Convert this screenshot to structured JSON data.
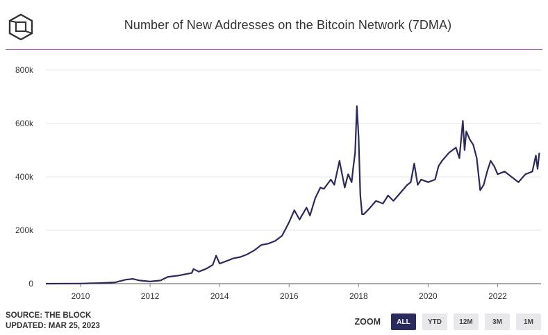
{
  "header": {
    "title": "Number of New Addresses on the Bitcoin Network (7DMA)"
  },
  "footer": {
    "source": "SOURCE: THE BLOCK",
    "updated": "UPDATED: MAR 25, 2023"
  },
  "zoom": {
    "label": "ZOOM",
    "buttons": [
      {
        "label": "ALL",
        "active": true
      },
      {
        "label": "YTD",
        "active": false
      },
      {
        "label": "12M",
        "active": false
      },
      {
        "label": "3M",
        "active": false
      },
      {
        "label": "1M",
        "active": false
      }
    ]
  },
  "colors": {
    "line": "#2b2a5c",
    "accent": "#b44fd0",
    "grid": "#e6e6e6"
  },
  "chart_data": {
    "type": "line",
    "title": "Number of New Addresses on the Bitcoin Network (7DMA)",
    "xlim": [
      2009.0,
      2023.25
    ],
    "ylim": [
      0,
      800000
    ],
    "x_ticks": [
      2010,
      2012,
      2014,
      2016,
      2018,
      2020,
      2022
    ],
    "x_tick_labels": [
      "2010",
      "2012",
      "2014",
      "2016",
      "2018",
      "2020",
      "2022"
    ],
    "y_ticks": [
      0,
      200000,
      400000,
      600000,
      800000
    ],
    "y_tick_labels": [
      "0",
      "200k",
      "400k",
      "600k",
      "800k"
    ],
    "grid": true,
    "series": [
      {
        "x": [
          2009.0,
          2010.0,
          2010.5,
          2011.0,
          2011.3,
          2011.5,
          2011.7,
          2012.0,
          2012.3,
          2012.5,
          2012.8,
          2013.0,
          2013.2,
          2013.25,
          2013.4,
          2013.6,
          2013.8,
          2013.9,
          2014.0,
          2014.2,
          2014.4,
          2014.6,
          2014.8,
          2015.0,
          2015.2,
          2015.4,
          2015.6,
          2015.8,
          2015.9,
          2016.0,
          2016.15,
          2016.3,
          2016.5,
          2016.6,
          2016.75,
          2016.9,
          2017.0,
          2017.2,
          2017.3,
          2017.45,
          2017.6,
          2017.7,
          2017.8,
          2017.85,
          2017.9,
          2017.95,
          2018.0,
          2018.05,
          2018.1,
          2018.15,
          2018.3,
          2018.5,
          2018.7,
          2018.85,
          2019.0,
          2019.2,
          2019.4,
          2019.5,
          2019.6,
          2019.7,
          2019.8,
          2020.0,
          2020.2,
          2020.3,
          2020.4,
          2020.6,
          2020.8,
          2020.9,
          2021.0,
          2021.05,
          2021.1,
          2021.2,
          2021.3,
          2021.4,
          2021.5,
          2021.6,
          2021.7,
          2021.8,
          2021.9,
          2022.0,
          2022.2,
          2022.4,
          2022.6,
          2022.8,
          2023.0,
          2023.1,
          2023.15,
          2023.2
        ],
        "y": [
          0,
          500,
          2000,
          5000,
          15000,
          18000,
          12000,
          8000,
          12000,
          25000,
          30000,
          35000,
          40000,
          55000,
          45000,
          55000,
          70000,
          105000,
          75000,
          85000,
          95000,
          100000,
          110000,
          125000,
          145000,
          150000,
          160000,
          180000,
          205000,
          230000,
          275000,
          240000,
          285000,
          255000,
          320000,
          360000,
          355000,
          390000,
          370000,
          460000,
          360000,
          410000,
          380000,
          440000,
          490000,
          665000,
          550000,
          330000,
          260000,
          260000,
          280000,
          310000,
          300000,
          330000,
          310000,
          340000,
          370000,
          380000,
          450000,
          370000,
          390000,
          380000,
          390000,
          440000,
          460000,
          490000,
          510000,
          470000,
          610000,
          500000,
          570000,
          540000,
          520000,
          470000,
          350000,
          370000,
          420000,
          460000,
          440000,
          410000,
          420000,
          400000,
          380000,
          410000,
          420000,
          480000,
          430000,
          490000
        ]
      }
    ]
  }
}
